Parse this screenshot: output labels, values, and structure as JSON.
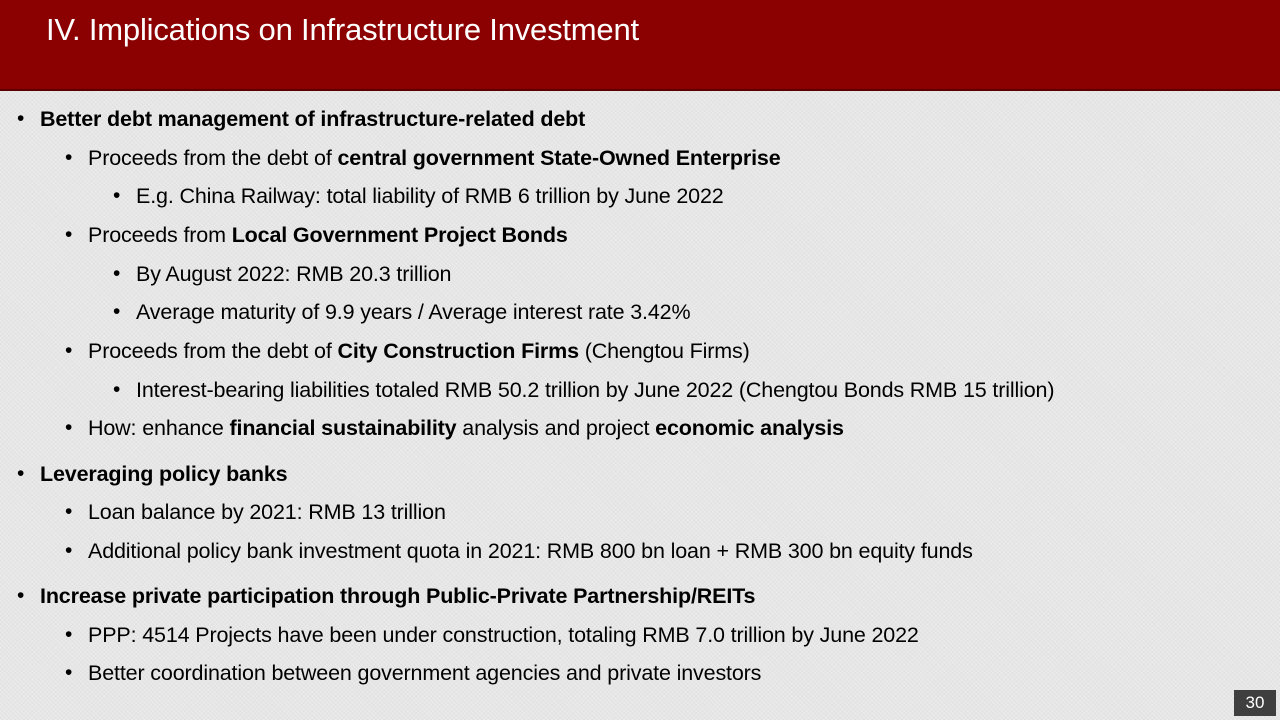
{
  "slide": {
    "title": "IV. Implications on Infrastructure Investment",
    "page_number": "30",
    "colors": {
      "title_bar": "#8b0000",
      "title_text": "#ffffff",
      "background": "#e6e6e6",
      "page_number_bg": "#3f3f3f"
    }
  },
  "bullets": {
    "b1": {
      "bold": "Better debt management of infrastructure-related debt"
    },
    "b1_1": {
      "pre": "Proceeds from the debt of ",
      "bold": "central government State-Owned Enterprise"
    },
    "b1_1_1": {
      "text": "E.g. China Railway: total liability of RMB 6 trillion by June 2022"
    },
    "b1_2": {
      "pre": "Proceeds from ",
      "bold": "Local Government Project Bonds"
    },
    "b1_2_1": {
      "text": "By August 2022: RMB 20.3 trillion"
    },
    "b1_2_2": {
      "text": "Average maturity of 9.9 years / Average interest rate 3.42%"
    },
    "b1_3": {
      "pre": "Proceeds from the debt of ",
      "bold": "City Construction Firms",
      "post": " (Chengtou Firms)"
    },
    "b1_3_1": {
      "text": "Interest-bearing liabilities totaled RMB 50.2 trillion by June 2022 (Chengtou Bonds RMB 15 trillion)"
    },
    "b1_4": {
      "pre": "How: enhance ",
      "bold1": "financial sustainability",
      "mid": " analysis and project ",
      "bold2": "economic analysis"
    },
    "b2": {
      "bold": "Leveraging policy banks"
    },
    "b2_1": {
      "text": "Loan balance by 2021: RMB 13 trillion"
    },
    "b2_2": {
      "text": "Additional policy bank investment quota in 2021: RMB 800 bn loan + RMB 300 bn equity funds"
    },
    "b3": {
      "bold": "Increase private participation through Public-Private Partnership/REITs"
    },
    "b3_1": {
      "text": "PPP: 4514 Projects have been under construction, totaling RMB 7.0 trillion by June 2022"
    },
    "b3_2": {
      "text": "Better coordination between government agencies and private investors"
    }
  }
}
